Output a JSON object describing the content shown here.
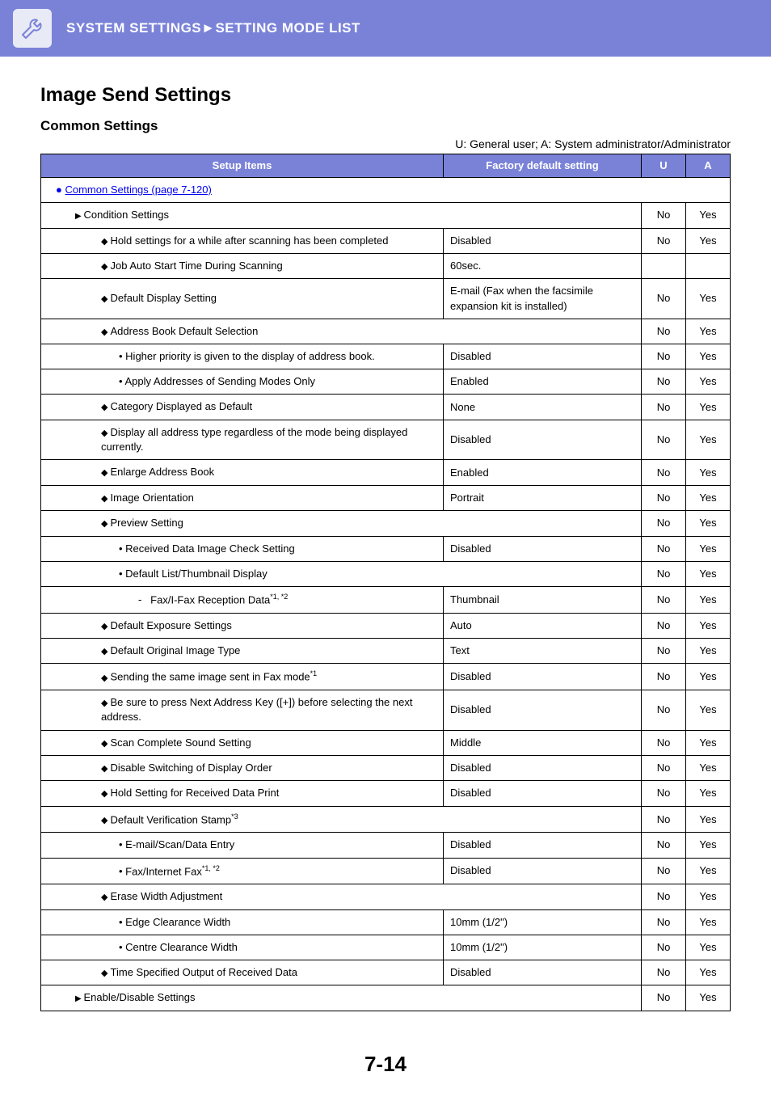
{
  "header": {
    "breadcrumb": "SYSTEM SETTINGS►SETTING MODE LIST"
  },
  "titles": {
    "h1": "Image Send Settings",
    "h2": "Common Settings",
    "legend": "U: General user; A: System administrator/Administrator"
  },
  "table_headers": {
    "setup": "Setup Items",
    "default": "Factory default setting",
    "u": "U",
    "a": "A"
  },
  "link_row": "Common Settings (page 7-120)",
  "rows": [
    {
      "cls": "ind-1 arrow",
      "label": "Condition Settings",
      "span": true,
      "u": "No",
      "a": "Yes"
    },
    {
      "cls": "ind-2 diamond",
      "label": "Hold settings for a while after scanning has been completed",
      "def": "Disabled",
      "u": "No",
      "a": "Yes"
    },
    {
      "cls": "ind-2 diamond",
      "label": "Job Auto Start Time During Scanning",
      "def": "60sec.",
      "u": "",
      "a": ""
    },
    {
      "cls": "ind-2 diamond",
      "label": "Default Display Setting",
      "def": "E-mail (Fax when the facsimile expansion kit is installed)",
      "u": "No",
      "a": "Yes"
    },
    {
      "cls": "ind-2 diamond",
      "label": "Address Book Default Selection",
      "span": true,
      "u": "No",
      "a": "Yes"
    },
    {
      "cls": "ind-3 dot",
      "label": "Higher priority is given to the display of address book.",
      "def": "Disabled",
      "u": "No",
      "a": "Yes"
    },
    {
      "cls": "ind-3 dot",
      "label": "Apply Addresses of Sending Modes Only",
      "def": "Enabled",
      "u": "No",
      "a": "Yes"
    },
    {
      "cls": "ind-2 diamond",
      "label": "Category Displayed as Default",
      "def": "None",
      "u": "No",
      "a": "Yes"
    },
    {
      "cls": "ind-2 diamond",
      "label": "Display all address type regardless of the mode being displayed currently.",
      "def": "Disabled",
      "u": "No",
      "a": "Yes"
    },
    {
      "cls": "ind-2 diamond",
      "label": "Enlarge Address Book",
      "def": "Enabled",
      "u": "No",
      "a": "Yes"
    },
    {
      "cls": "ind-2 diamond",
      "label": "Image Orientation",
      "def": "Portrait",
      "u": "No",
      "a": "Yes"
    },
    {
      "cls": "ind-2 diamond",
      "label": "Preview Setting",
      "span": true,
      "u": "No",
      "a": "Yes"
    },
    {
      "cls": "ind-3 dot",
      "label": "Received Data Image Check Setting",
      "def": "Disabled",
      "u": "No",
      "a": "Yes"
    },
    {
      "cls": "ind-3 dot",
      "label": "Default List/Thumbnail Display",
      "span": true,
      "u": "No",
      "a": "Yes"
    },
    {
      "cls": "ind-4 dash",
      "label": "Fax/I-Fax Reception Data",
      "sup": "*1, *2",
      "def": "Thumbnail",
      "u": "No",
      "a": "Yes"
    },
    {
      "cls": "ind-2 diamond",
      "label": "Default Exposure Settings",
      "def": "Auto",
      "u": "No",
      "a": "Yes"
    },
    {
      "cls": "ind-2 diamond",
      "label": "Default Original Image Type",
      "def": "Text",
      "u": "No",
      "a": "Yes"
    },
    {
      "cls": "ind-2 diamond",
      "label": "Sending the same image sent in Fax mode",
      "sup": "*1",
      "def": "Disabled",
      "u": "No",
      "a": "Yes"
    },
    {
      "cls": "ind-2 diamond",
      "label": "Be sure to press Next Address Key ([+]) before selecting the next address.",
      "def": "Disabled",
      "u": "No",
      "a": "Yes"
    },
    {
      "cls": "ind-2 diamond",
      "label": "Scan Complete Sound Setting",
      "def": "Middle",
      "u": "No",
      "a": "Yes"
    },
    {
      "cls": "ind-2 diamond",
      "label": "Disable Switching of Display Order",
      "def": "Disabled",
      "u": "No",
      "a": "Yes"
    },
    {
      "cls": "ind-2 diamond",
      "label": "Hold Setting for Received Data Print",
      "def": "Disabled",
      "u": "No",
      "a": "Yes"
    },
    {
      "cls": "ind-2 diamond",
      "label": "Default Verification Stamp",
      "sup": "*3",
      "span": true,
      "u": "No",
      "a": "Yes"
    },
    {
      "cls": "ind-3 dot",
      "label": "E-mail/Scan/Data Entry",
      "def": "Disabled",
      "u": "No",
      "a": "Yes"
    },
    {
      "cls": "ind-3 dot",
      "label": "Fax/Internet Fax",
      "sup": "*1, *2",
      "def": "Disabled",
      "u": "No",
      "a": "Yes"
    },
    {
      "cls": "ind-2 diamond",
      "label": "Erase Width Adjustment",
      "span": true,
      "u": "No",
      "a": "Yes"
    },
    {
      "cls": "ind-3 dot",
      "label": "Edge Clearance Width",
      "def": "10mm (1/2\")",
      "u": "No",
      "a": "Yes"
    },
    {
      "cls": "ind-3 dot",
      "label": "Centre Clearance Width",
      "def": "10mm (1/2\")",
      "u": "No",
      "a": "Yes"
    },
    {
      "cls": "ind-2 diamond",
      "label": "Time Specified Output of Received Data",
      "def": "Disabled",
      "u": "No",
      "a": "Yes"
    },
    {
      "cls": "ind-1 arrow",
      "label": "Enable/Disable Settings",
      "span": true,
      "u": "No",
      "a": "Yes"
    }
  ],
  "page_number": "7-14"
}
